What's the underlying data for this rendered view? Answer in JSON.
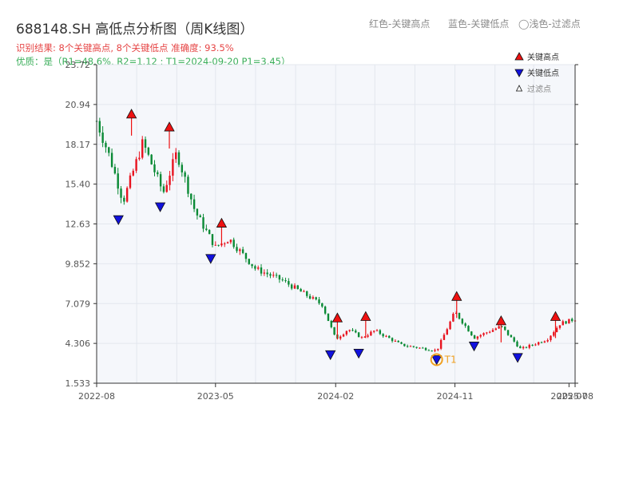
{
  "header": {
    "title": "688148.SH 高低点分析图（周K线图）",
    "legend_red": "红色-关键高点",
    "legend_blue": "蓝色-关键低点",
    "legend_light": "◯浅色-过滤点",
    "result_line": "识别结果: 8个关键高点, 8个关键低点  准确度: 93.5%",
    "quality_line": "优质：是（R1=48.6%, R2=1.12 ; T1=2024-09-20 P1=3.45）"
  },
  "colors": {
    "up": "#e8131f",
    "down": "#0a8a35",
    "high_marker": "#ee1111",
    "low_marker": "#1111dd",
    "t1_circle": "#f0a020",
    "plot_bg": "#f5f7fb",
    "grid": "#e3e7ee"
  },
  "chart_data": {
    "type": "candlestick",
    "y_ticks": [
      "1.533",
      "4.306",
      "7.079",
      "9.852",
      "12.63",
      "15.40",
      "18.17",
      "20.94",
      "23.72"
    ],
    "x_ticks": [
      "2022-08",
      "2023-05",
      "2024-02",
      "2024-11",
      "2025-07",
      "2025-08"
    ],
    "ylim": [
      1.533,
      23.72
    ],
    "xlim": [
      "2022-08-01",
      "2025-08-04"
    ],
    "legend": [
      {
        "label": "关键高点",
        "marker": "triangle-up-red"
      },
      {
        "label": "关键低点",
        "marker": "triangle-down-blue"
      },
      {
        "label": "过滤点",
        "marker": "triangle-up-white-small"
      }
    ],
    "anchors": [
      {
        "date": "2022-08-01",
        "value": 19.8
      },
      {
        "date": "2022-09-01",
        "value": 17.2
      },
      {
        "date": "2022-10-01",
        "value": 14.2
      },
      {
        "date": "2022-11-15",
        "value": 18.3
      },
      {
        "date": "2023-01-01",
        "value": 14.8
      },
      {
        "date": "2023-02-01",
        "value": 17.6
      },
      {
        "date": "2023-03-15",
        "value": 13.5
      },
      {
        "date": "2023-05-01",
        "value": 11.0
      },
      {
        "date": "2023-06-01",
        "value": 11.6
      },
      {
        "date": "2023-08-01",
        "value": 9.5
      },
      {
        "date": "2023-10-01",
        "value": 8.7
      },
      {
        "date": "2024-01-01",
        "value": 7.0
      },
      {
        "date": "2024-02-01",
        "value": 4.6
      },
      {
        "date": "2024-03-01",
        "value": 5.3
      },
      {
        "date": "2024-04-01",
        "value": 4.7
      },
      {
        "date": "2024-05-01",
        "value": 5.2
      },
      {
        "date": "2024-07-01",
        "value": 4.2
      },
      {
        "date": "2024-09-20",
        "value": 3.8
      },
      {
        "date": "2024-11-01",
        "value": 6.5
      },
      {
        "date": "2024-12-15",
        "value": 4.7
      },
      {
        "date": "2025-02-15",
        "value": 5.5
      },
      {
        "date": "2025-04-01",
        "value": 3.9
      },
      {
        "date": "2025-06-01",
        "value": 4.6
      },
      {
        "date": "2025-07-01",
        "value": 5.7
      },
      {
        "date": "2025-08-04",
        "value": 6.0
      }
    ],
    "key_highs": [
      {
        "date": "2022-10-20",
        "value": 20.0
      },
      {
        "date": "2023-01-15",
        "value": 19.1
      },
      {
        "date": "2023-05-15",
        "value": 12.4
      },
      {
        "date": "2024-02-05",
        "value": 5.8
      },
      {
        "date": "2024-04-10",
        "value": 5.9
      },
      {
        "date": "2024-11-05",
        "value": 7.3
      },
      {
        "date": "2025-02-15",
        "value": 5.6
      },
      {
        "date": "2025-06-20",
        "value": 5.9
      }
    ],
    "key_lows": [
      {
        "date": "2022-09-20",
        "value": 13.2
      },
      {
        "date": "2022-12-25",
        "value": 14.1
      },
      {
        "date": "2023-04-20",
        "value": 10.5
      },
      {
        "date": "2024-01-20",
        "value": 3.8
      },
      {
        "date": "2024-03-25",
        "value": 3.9
      },
      {
        "date": "2024-09-20",
        "value": 3.45
      },
      {
        "date": "2024-12-15",
        "value": 4.4
      },
      {
        "date": "2025-03-25",
        "value": 3.6
      }
    ],
    "t1": {
      "label": "T1",
      "date": "2024-09-20",
      "value": 3.45
    }
  }
}
